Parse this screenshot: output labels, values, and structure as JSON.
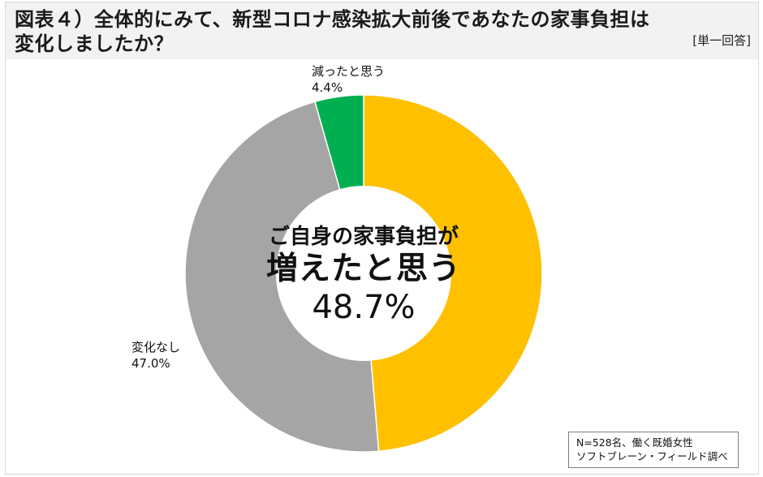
{
  "header": {
    "title_line1": "図表４）全体的にみて、新型コロナ感染拡大前後であなたの家事負担は",
    "title_line2": "変化しましたか？",
    "answer_type": "[単一回答]"
  },
  "center": {
    "line1": "ご自身の家事負担が",
    "line2": "増えたと思う",
    "line3": "48.7%"
  },
  "labels": {
    "decreased_name": "減ったと思う",
    "decreased_value": "4.4%",
    "nochange_name": "変化なし",
    "nochange_value": "47.0%"
  },
  "note": {
    "line1": "N=528名、働く既婚女性",
    "line2": "ソフトブレーン・フィールド調べ"
  },
  "colors": {
    "increased": "#FFC000",
    "no_change": "#A5A5A5",
    "decreased": "#00B050",
    "header_bg": "#F2F2F2"
  },
  "chart_data": {
    "type": "pie",
    "variant": "donut",
    "title": "図表４）全体的にみて、新型コロナ感染拡大前後であなたの家事負担は変化しましたか？",
    "subtitle": "[単一回答]",
    "categories": [
      "増えたと思う",
      "変化なし",
      "減ったと思う"
    ],
    "values": [
      48.7,
      47.0,
      4.4
    ],
    "unit": "%",
    "colors": [
      "#FFC000",
      "#A5A5A5",
      "#00B050"
    ],
    "start_angle": "12 o'clock, clockwise",
    "center_annotation": "ご自身の家事負担が 増えたと思う 48.7%",
    "annotations": [
      "N=528名、働く既婚女性",
      "ソフトブレーン・フィールド調べ"
    ],
    "legend": "none (direct labels)"
  }
}
